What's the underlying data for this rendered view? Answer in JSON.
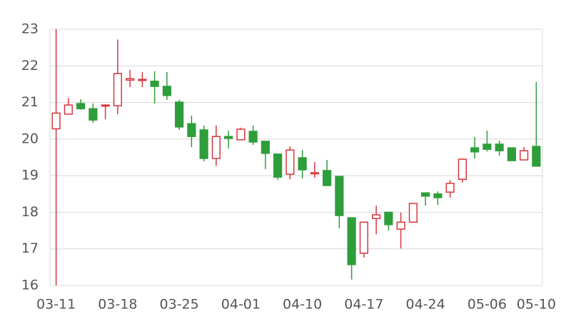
{
  "chart_data": {
    "type": "candlestick",
    "categories": [
      "03-11",
      null,
      null,
      null,
      null,
      "03-18",
      null,
      null,
      null,
      null,
      "03-25",
      null,
      null,
      null,
      null,
      "04-01",
      null,
      null,
      null,
      null,
      "04-10",
      null,
      null,
      null,
      null,
      "04-17",
      null,
      null,
      null,
      null,
      "04-24",
      null,
      null,
      null,
      null,
      "05-06",
      null,
      null,
      null,
      "05-10"
    ],
    "open": [
      20.28,
      20.68,
      20.97,
      20.83,
      20.9,
      20.91,
      21.61,
      21.6,
      21.58,
      21.44,
      21.01,
      20.42,
      20.25,
      19.47,
      20.07,
      19.98,
      20.21,
      19.94,
      19.59,
      19.04,
      19.49,
      19.06,
      19.14,
      18.98,
      17.85,
      16.88,
      17.83,
      18.0,
      17.54,
      17.73,
      18.53,
      18.5,
      18.55,
      18.9,
      19.76,
      19.86,
      19.86,
      19.76,
      19.43,
      19.8
    ],
    "high": [
      23.0,
      21.12,
      21.09,
      20.97,
      20.95,
      22.72,
      21.89,
      21.83,
      21.85,
      21.83,
      21.07,
      20.64,
      20.37,
      20.37,
      20.23,
      20.31,
      20.37,
      19.94,
      19.59,
      19.8,
      19.7,
      19.37,
      19.43,
      18.98,
      17.85,
      17.73,
      18.18,
      18.0,
      17.99,
      18.24,
      18.53,
      18.57,
      18.88,
      19.47,
      20.05,
      20.23,
      19.96,
      19.76,
      19.78,
      21.56
    ],
    "low": [
      16.0,
      20.68,
      20.8,
      20.44,
      20.54,
      20.68,
      21.42,
      21.42,
      20.97,
      21.07,
      20.25,
      19.78,
      19.39,
      19.27,
      19.74,
      19.97,
      19.84,
      19.18,
      18.88,
      18.9,
      18.92,
      18.94,
      18.73,
      17.56,
      16.16,
      16.76,
      17.4,
      17.5,
      17.01,
      17.73,
      18.18,
      18.2,
      18.4,
      18.81,
      19.47,
      19.66,
      19.55,
      19.41,
      19.43,
      19.26
    ],
    "close": [
      20.71,
      20.93,
      20.83,
      20.52,
      20.93,
      21.79,
      21.65,
      21.63,
      21.44,
      21.19,
      20.33,
      20.07,
      19.47,
      20.07,
      20.02,
      20.27,
      19.92,
      19.61,
      18.96,
      19.7,
      19.16,
      19.08,
      18.73,
      17.91,
      16.57,
      17.73,
      17.93,
      17.66,
      17.73,
      18.24,
      18.44,
      18.4,
      18.79,
      19.45,
      19.65,
      19.72,
      19.68,
      19.41,
      19.68,
      19.26
    ],
    "up_color": "#d9363e",
    "down_color": "#2e9e3a",
    "ylim": [
      16,
      23
    ],
    "yticks": [
      16,
      17,
      18,
      19,
      20,
      21,
      22,
      23
    ],
    "grid": true
  }
}
